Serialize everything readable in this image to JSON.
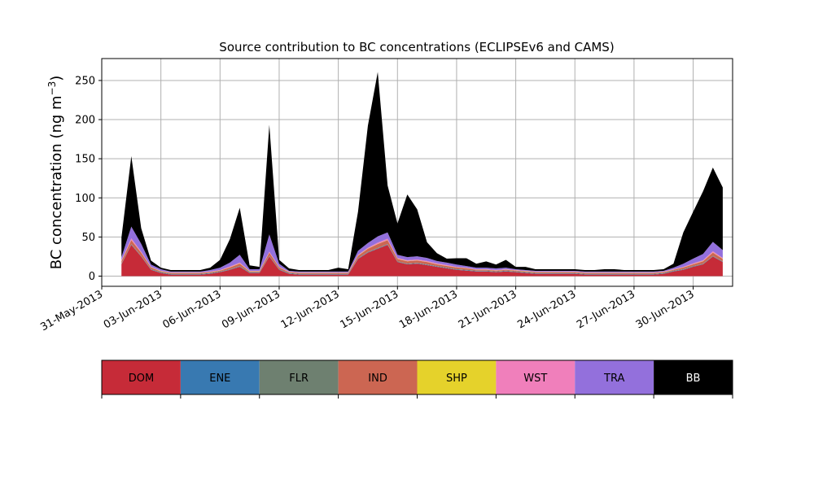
{
  "chart_data": {
    "type": "area",
    "stacked": true,
    "title": "Source contribution to BC concentrations (ECLIPSEv6 and CAMS)",
    "ylabel": "BC concentration (ng m",
    "ylabel_sup": "−3",
    "ylabel_close": ")",
    "xlabel": "",
    "x_range": [
      "2013-05-31",
      "2013-07-02"
    ],
    "ylim": [
      -13,
      278
    ],
    "yticks": [
      0,
      50,
      100,
      150,
      200,
      250
    ],
    "xticks": [
      "2013-05-31",
      "2013-06-03",
      "2013-06-06",
      "2013-06-09",
      "2013-06-12",
      "2013-06-15",
      "2013-06-18",
      "2013-06-21",
      "2013-06-24",
      "2013-06-27",
      "2013-06-30"
    ],
    "xtick_labels": [
      "31-May-2013",
      "03-Jun-2013",
      "06-Jun-2013",
      "09-Jun-2013",
      "12-Jun-2013",
      "15-Jun-2013",
      "18-Jun-2013",
      "21-Jun-2013",
      "24-Jun-2013",
      "27-Jun-2013",
      "30-Jun-2013"
    ],
    "grid": true,
    "legend_position": "below",
    "x": [
      "2013-06-01",
      "2013-06-01T12",
      "2013-06-02",
      "2013-06-02T12",
      "2013-06-03",
      "2013-06-03T12",
      "2013-06-04",
      "2013-06-04T12",
      "2013-06-05",
      "2013-06-05T12",
      "2013-06-06",
      "2013-06-06T12",
      "2013-06-07",
      "2013-06-07T12",
      "2013-06-08",
      "2013-06-08T12",
      "2013-06-09",
      "2013-06-09T12",
      "2013-06-10",
      "2013-06-10T12",
      "2013-06-11",
      "2013-06-11T12",
      "2013-06-12",
      "2013-06-12T12",
      "2013-06-13",
      "2013-06-13T12",
      "2013-06-14",
      "2013-06-14T12",
      "2013-06-15",
      "2013-06-15T12",
      "2013-06-16",
      "2013-06-16T12",
      "2013-06-17",
      "2013-06-17T12",
      "2013-06-18",
      "2013-06-18T12",
      "2013-06-19",
      "2013-06-19T12",
      "2013-06-20",
      "2013-06-20T12",
      "2013-06-21",
      "2013-06-21T12",
      "2013-06-22",
      "2013-06-22T12",
      "2013-06-23",
      "2013-06-23T12",
      "2013-06-24",
      "2013-06-24T12",
      "2013-06-25",
      "2013-06-25T12",
      "2013-06-26",
      "2013-06-26T12",
      "2013-06-27",
      "2013-06-27T12",
      "2013-06-28",
      "2013-06-28T12",
      "2013-06-29",
      "2013-06-29T12",
      "2013-06-30",
      "2013-06-30T12",
      "2013-07-01",
      "2013-07-01T12"
    ],
    "series": [
      {
        "name": "DOM",
        "color": "#c62b38",
        "values": [
          15,
          40,
          25,
          8,
          4,
          2,
          2,
          2,
          2,
          3,
          5,
          8,
          12,
          4,
          4,
          25,
          8,
          3,
          2,
          2,
          2,
          2,
          2,
          2,
          22,
          30,
          35,
          40,
          18,
          15,
          16,
          14,
          12,
          10,
          8,
          7,
          6,
          6,
          5,
          6,
          5,
          4,
          3,
          3,
          3,
          3,
          3,
          2,
          2,
          2,
          2,
          2,
          2,
          2,
          2,
          3,
          6,
          8,
          12,
          15,
          25,
          18
        ]
      },
      {
        "name": "ENE",
        "color": "#3879b1",
        "values": [
          0.5,
          0.5,
          0.5,
          0.5,
          0.5,
          0.5,
          0.5,
          0.5,
          0.5,
          0.5,
          0.5,
          0.5,
          0.5,
          0.5,
          0.5,
          0.5,
          0.5,
          0.5,
          0.5,
          0.5,
          0.5,
          0.5,
          0.5,
          0.5,
          0.5,
          0.5,
          0.5,
          0.5,
          0.5,
          0.5,
          0.5,
          0.5,
          0.5,
          0.5,
          0.5,
          0.5,
          0.5,
          0.5,
          0.5,
          0.5,
          0.5,
          0.5,
          0.5,
          0.5,
          0.5,
          0.5,
          0.5,
          0.5,
          0.5,
          0.5,
          0.5,
          0.5,
          0.5,
          0.5,
          0.5,
          0.5,
          0.5,
          0.5,
          0.5,
          0.5,
          0.5,
          0.5
        ]
      },
      {
        "name": "FLR",
        "color": "#6e8070",
        "values": [
          0.5,
          0.5,
          0.5,
          0.5,
          0.5,
          0.5,
          0.5,
          0.5,
          0.5,
          0.5,
          0.5,
          0.5,
          0.5,
          0.5,
          0.5,
          0.5,
          0.5,
          0.5,
          0.5,
          0.5,
          0.5,
          0.5,
          0.5,
          0.5,
          0.5,
          0.5,
          0.5,
          0.5,
          0.5,
          0.5,
          0.5,
          0.5,
          0.5,
          0.5,
          0.5,
          0.5,
          0.5,
          0.5,
          0.5,
          0.5,
          0.5,
          0.5,
          0.5,
          0.5,
          0.5,
          0.5,
          0.5,
          0.5,
          0.5,
          0.5,
          0.5,
          0.5,
          0.5,
          0.5,
          0.5,
          0.5,
          0.5,
          0.5,
          0.5,
          0.5,
          0.5,
          0.5
        ]
      },
      {
        "name": "IND",
        "color": "#cc6652",
        "values": [
          3,
          5,
          4,
          2,
          1,
          1,
          1,
          1,
          1,
          1,
          1,
          2,
          3,
          1,
          1,
          4,
          2,
          1,
          1,
          1,
          1,
          1,
          1,
          1,
          3,
          4,
          5,
          5,
          3,
          3,
          3,
          3,
          2,
          2,
          2,
          2,
          1,
          1,
          1,
          1,
          1,
          1,
          1,
          1,
          1,
          1,
          1,
          1,
          1,
          1,
          1,
          1,
          1,
          1,
          1,
          1,
          1,
          2,
          2,
          3,
          4,
          3
        ]
      },
      {
        "name": "SHP",
        "color": "#e5d22b",
        "values": [
          0.3,
          0.3,
          0.3,
          0.3,
          0.3,
          0.3,
          0.3,
          0.3,
          0.3,
          0.3,
          0.3,
          0.3,
          0.3,
          0.3,
          0.3,
          0.3,
          0.3,
          0.3,
          0.3,
          0.3,
          0.3,
          0.3,
          0.3,
          0.3,
          0.3,
          0.3,
          0.3,
          0.3,
          0.3,
          0.3,
          0.3,
          0.3,
          0.3,
          0.3,
          0.3,
          0.3,
          0.3,
          0.3,
          0.3,
          0.3,
          0.3,
          0.3,
          0.3,
          0.3,
          0.3,
          0.3,
          0.3,
          0.3,
          0.3,
          0.3,
          0.3,
          0.3,
          0.3,
          0.3,
          0.3,
          0.3,
          0.3,
          0.3,
          0.3,
          0.3,
          0.3,
          0.3
        ]
      },
      {
        "name": "WST",
        "color": "#f07fbb",
        "values": [
          1,
          2,
          1,
          0.5,
          0.5,
          0.5,
          0.5,
          0.5,
          0.5,
          0.5,
          0.5,
          1,
          1,
          0.5,
          0.5,
          1,
          0.5,
          0.5,
          0.5,
          0.5,
          0.5,
          0.5,
          0.5,
          0.5,
          1,
          1,
          1.5,
          1.5,
          1,
          1,
          1,
          1,
          1,
          1,
          0.5,
          0.5,
          0.5,
          0.5,
          0.5,
          0.5,
          0.5,
          0.5,
          0.5,
          0.5,
          0.5,
          0.5,
          0.5,
          0.5,
          0.5,
          0.5,
          0.5,
          0.5,
          0.5,
          0.5,
          0.5,
          0.5,
          0.5,
          0.5,
          1,
          1,
          1.5,
          1
        ]
      },
      {
        "name": "TRA",
        "color": "#9370dc",
        "values": [
          4,
          15,
          10,
          3,
          2,
          1,
          1,
          1,
          1,
          2,
          3,
          5,
          10,
          2,
          2,
          22,
          4,
          1,
          1,
          1,
          1,
          1,
          1,
          1,
          5,
          6,
          8,
          8,
          4,
          4,
          4,
          4,
          3,
          3,
          3,
          2,
          2,
          2,
          2,
          2,
          1,
          1,
          1,
          1,
          1,
          1,
          1,
          1,
          1,
          1,
          1,
          1,
          1,
          1,
          1,
          1,
          2,
          4,
          6,
          8,
          12,
          10
        ]
      },
      {
        "name": "BB",
        "color": "#000000",
        "values": [
          25,
          90,
          20,
          5,
          2,
          2,
          2,
          2,
          2,
          3,
          10,
          30,
          60,
          5,
          3,
          140,
          5,
          3,
          2,
          2,
          2,
          2,
          5,
          3,
          50,
          150,
          210,
          60,
          40,
          80,
          60,
          20,
          10,
          5,
          8,
          10,
          5,
          8,
          5,
          10,
          3,
          4,
          2,
          2,
          2,
          2,
          2,
          2,
          2,
          3,
          3,
          2,
          2,
          2,
          2,
          2,
          5,
          40,
          60,
          80,
          95,
          80
        ]
      }
    ]
  }
}
